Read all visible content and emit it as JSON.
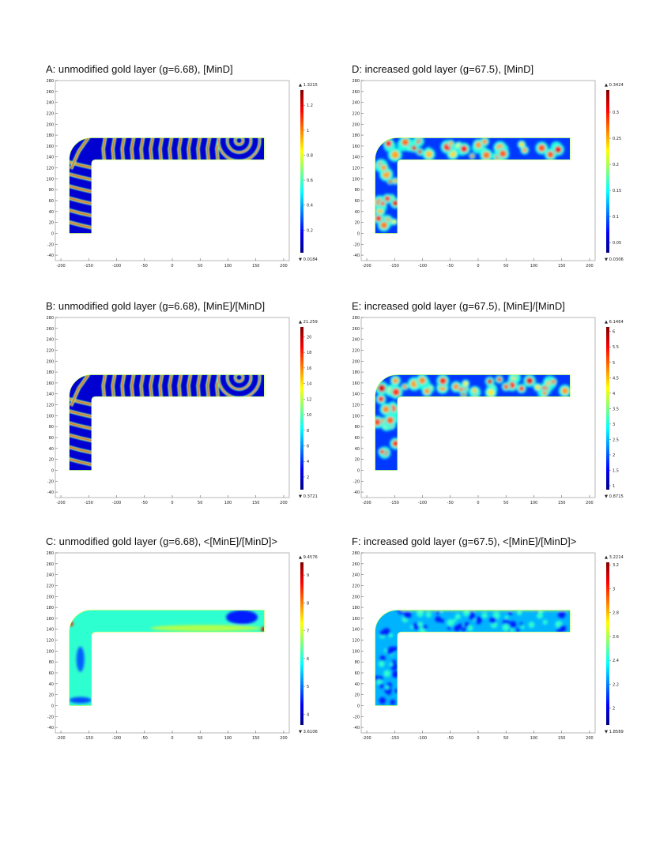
{
  "chart_data": [
    {
      "id": "A",
      "type": "heatmap",
      "title": "A: unmodified gold layer (g=6.68), [MinD]",
      "variable": "[MinD]",
      "pattern": "bands",
      "seed": 1,
      "xlim": [
        -210,
        210
      ],
      "ylim": [
        -50,
        280
      ],
      "x_ticks": [
        -200,
        -150,
        -100,
        -50,
        0,
        50,
        100,
        150,
        200
      ],
      "y_ticks": [
        -40,
        -20,
        0,
        20,
        40,
        60,
        80,
        100,
        120,
        140,
        160,
        180,
        200,
        220,
        240,
        260,
        280
      ],
      "colorbar": {
        "min": 0.0184,
        "max": 1.3215,
        "min_label": "▼ 0.0184",
        "max_label": "▲ 1.3215",
        "ticks": [
          "0.2",
          "0.4",
          "0.6",
          "0.8",
          "1",
          "1.2"
        ],
        "tick_values": [
          0.2,
          0.4,
          0.6,
          0.8,
          1.0,
          1.2
        ]
      },
      "colormap": "rainbow"
    },
    {
      "id": "B",
      "type": "heatmap",
      "title": "B: unmodified gold layer (g=6.68), [MinE]/[MinD]",
      "variable": "[MinE]/[MinD]",
      "pattern": "bands",
      "seed": 2,
      "xlim": [
        -210,
        210
      ],
      "ylim": [
        -50,
        280
      ],
      "x_ticks": [
        -200,
        -150,
        -100,
        -50,
        0,
        50,
        100,
        150,
        200
      ],
      "y_ticks": [
        -40,
        -20,
        0,
        20,
        40,
        60,
        80,
        100,
        120,
        140,
        160,
        180,
        200,
        220,
        240,
        260,
        280
      ],
      "colorbar": {
        "min": 0.3721,
        "max": 21.259,
        "min_label": "▼ 0.3721",
        "max_label": "▲ 21.259",
        "ticks": [
          "2",
          "4",
          "6",
          "8",
          "10",
          "12",
          "14",
          "16",
          "18",
          "20"
        ],
        "tick_values": [
          2,
          4,
          6,
          8,
          10,
          12,
          14,
          16,
          18,
          20
        ]
      },
      "colormap": "rainbow"
    },
    {
      "id": "C",
      "type": "heatmap",
      "title": "C: unmodified gold layer (g=6.68), <[MinE]/[MinD]>",
      "variable": "<[MinE]/[MinD]>",
      "pattern": "smooth",
      "seed": 3,
      "xlim": [
        -210,
        210
      ],
      "ylim": [
        -50,
        280
      ],
      "x_ticks": [
        -200,
        -150,
        -100,
        -50,
        0,
        50,
        100,
        150,
        200
      ],
      "y_ticks": [
        -40,
        -20,
        0,
        20,
        40,
        60,
        80,
        100,
        120,
        140,
        160,
        180,
        200,
        220,
        240,
        260,
        280
      ],
      "colorbar": {
        "min": 3.6106,
        "max": 9.4576,
        "min_label": "▼ 3.6106",
        "max_label": "▲ 9.4576",
        "ticks": [
          "4",
          "5",
          "6",
          "7",
          "8",
          "9"
        ],
        "tick_values": [
          4,
          5,
          6,
          7,
          8,
          9
        ]
      },
      "colormap": "rainbow"
    },
    {
      "id": "D",
      "type": "heatmap",
      "title": "D: increased gold layer (g=67.5), [MinD]",
      "variable": "[MinD]",
      "pattern": "spots",
      "seed": 4,
      "xlim": [
        -210,
        210
      ],
      "ylim": [
        -50,
        280
      ],
      "x_ticks": [
        -200,
        -150,
        -100,
        -50,
        0,
        50,
        100,
        150,
        200
      ],
      "y_ticks": [
        -40,
        -20,
        0,
        20,
        40,
        60,
        80,
        100,
        120,
        140,
        160,
        180,
        200,
        220,
        240,
        260,
        280
      ],
      "colorbar": {
        "min": 0.0306,
        "max": 0.3424,
        "min_label": "▼ 0.0306",
        "max_label": "▲ 0.3424",
        "ticks": [
          "0.05",
          "0.1",
          "0.15",
          "0.2",
          "0.25",
          "0.3"
        ],
        "tick_values": [
          0.05,
          0.1,
          0.15,
          0.2,
          0.25,
          0.3
        ]
      },
      "colormap": "rainbow"
    },
    {
      "id": "E",
      "type": "heatmap",
      "title": "E: increased gold layer (g=67.5), [MinE]/[MinD]",
      "variable": "[MinE]/[MinD]",
      "pattern": "spots",
      "seed": 5,
      "xlim": [
        -210,
        210
      ],
      "ylim": [
        -50,
        280
      ],
      "x_ticks": [
        -200,
        -150,
        -100,
        -50,
        0,
        50,
        100,
        150,
        200
      ],
      "y_ticks": [
        -40,
        -20,
        0,
        20,
        40,
        60,
        80,
        100,
        120,
        140,
        160,
        180,
        200,
        220,
        240,
        260,
        280
      ],
      "colorbar": {
        "min": 0.8715,
        "max": 6.1464,
        "min_label": "▼ 0.8715",
        "max_label": "▲ 6.1464",
        "ticks": [
          "1",
          "1.5",
          "2",
          "2.5",
          "3",
          "3.5",
          "4",
          "4.5",
          "5",
          "5.5",
          "6"
        ],
        "tick_values": [
          1,
          1.5,
          2,
          2.5,
          3,
          3.5,
          4,
          4.5,
          5,
          5.5,
          6
        ]
      },
      "colormap": "rainbow"
    },
    {
      "id": "F",
      "type": "heatmap",
      "title": "F: increased gold layer (g=67.5), <[MinE]/[MinD]>",
      "variable": "<[MinE]/[MinD]>",
      "pattern": "mottled",
      "seed": 6,
      "xlim": [
        -210,
        210
      ],
      "ylim": [
        -50,
        280
      ],
      "x_ticks": [
        -200,
        -150,
        -100,
        -50,
        0,
        50,
        100,
        150,
        200
      ],
      "y_ticks": [
        -40,
        -20,
        0,
        20,
        40,
        60,
        80,
        100,
        120,
        140,
        160,
        180,
        200,
        220,
        240,
        260,
        280
      ],
      "colorbar": {
        "min": 1.8589,
        "max": 3.2214,
        "min_label": "▼ 1.8589",
        "max_label": "▲ 3.2214",
        "ticks": [
          "2",
          "2.2",
          "2.4",
          "2.6",
          "2.8",
          "3",
          "3.2"
        ],
        "tick_values": [
          2.0,
          2.2,
          2.4,
          2.6,
          2.8,
          3.0,
          3.2
        ]
      },
      "colormap": "rainbow"
    }
  ],
  "domain_shape": {
    "horizontal_arm": {
      "x": [
        -145,
        165
      ],
      "y": [
        135,
        175
      ]
    },
    "vertical_arm": {
      "x": [
        -185,
        -145
      ],
      "y": [
        0,
        135
      ]
    },
    "corner_radius": 40
  }
}
